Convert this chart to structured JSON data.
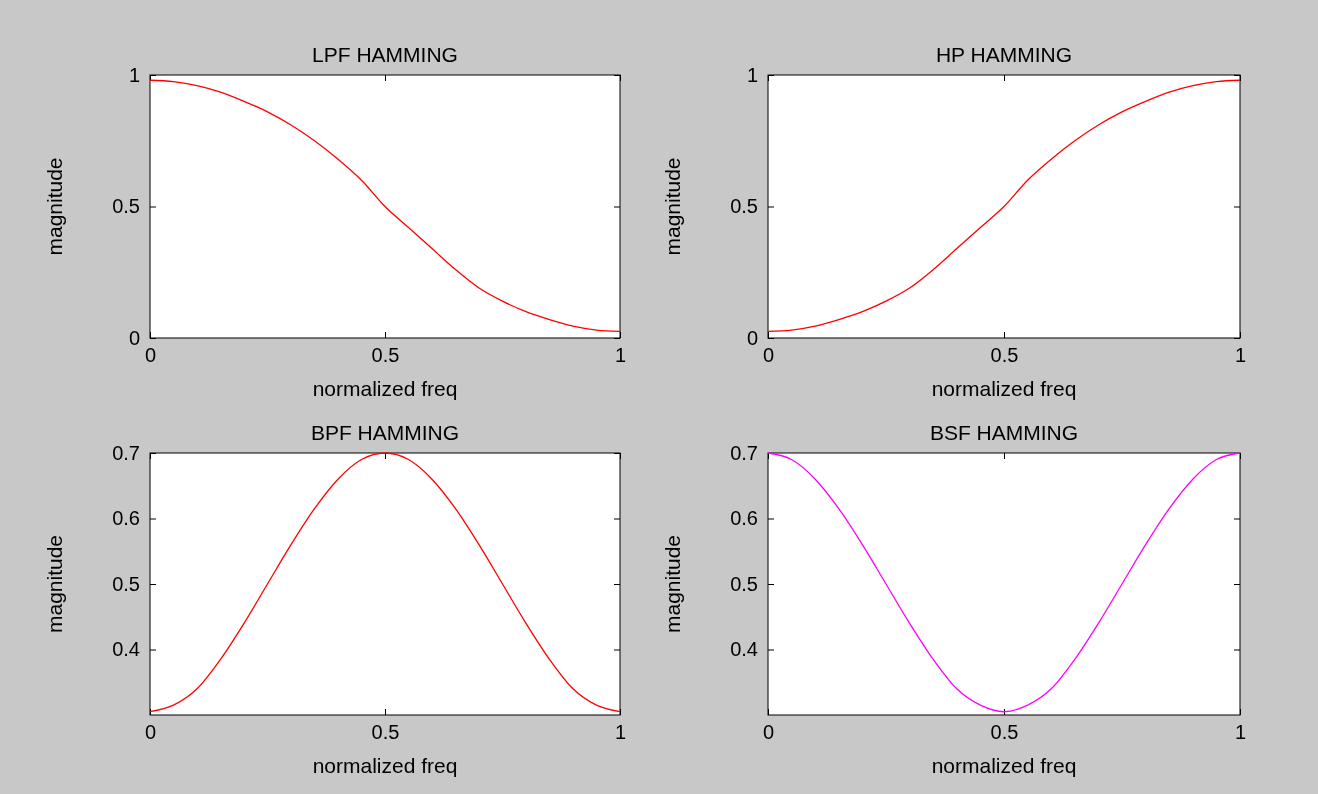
{
  "chart_data": [
    {
      "type": "line",
      "title": "LPF HAMMING",
      "xlabel": "normalized freq",
      "ylabel": "magnitude",
      "xlim": [
        0,
        1
      ],
      "ylim": [
        0,
        1
      ],
      "xticks": [
        0,
        0.5,
        1
      ],
      "yticks": [
        0,
        0.5,
        1
      ],
      "grid": false,
      "x": [
        0,
        0.05,
        0.1,
        0.15,
        0.2,
        0.25,
        0.3,
        0.35,
        0.4,
        0.45,
        0.5,
        0.55,
        0.6,
        0.65,
        0.7,
        0.75,
        0.8,
        0.85,
        0.9,
        0.95,
        1
      ],
      "series": [
        {
          "color": "#ff0000",
          "values": [
            0.98,
            0.975,
            0.96,
            0.935,
            0.9,
            0.86,
            0.81,
            0.75,
            0.68,
            0.6,
            0.5,
            0.42,
            0.34,
            0.26,
            0.19,
            0.14,
            0.1,
            0.07,
            0.045,
            0.03,
            0.025
          ]
        }
      ]
    },
    {
      "type": "line",
      "title": "HP HAMMING",
      "xlabel": "normalized freq",
      "ylabel": "magnitude",
      "xlim": [
        0,
        1
      ],
      "ylim": [
        0,
        1
      ],
      "xticks": [
        0,
        0.5,
        1
      ],
      "yticks": [
        0,
        0.5,
        1
      ],
      "grid": false,
      "x": [
        0,
        0.05,
        0.1,
        0.15,
        0.2,
        0.25,
        0.3,
        0.35,
        0.4,
        0.45,
        0.5,
        0.55,
        0.6,
        0.65,
        0.7,
        0.75,
        0.8,
        0.85,
        0.9,
        0.95,
        1
      ],
      "series": [
        {
          "color": "#ff0000",
          "values": [
            0.025,
            0.03,
            0.045,
            0.07,
            0.1,
            0.14,
            0.19,
            0.26,
            0.34,
            0.42,
            0.5,
            0.6,
            0.68,
            0.75,
            0.81,
            0.86,
            0.9,
            0.935,
            0.96,
            0.975,
            0.98
          ]
        }
      ]
    },
    {
      "type": "line",
      "title": "BPF HAMMING",
      "xlabel": "normalized freq",
      "ylabel": "magnitude",
      "xlim": [
        0,
        1
      ],
      "ylim": [
        0.3,
        0.7
      ],
      "xticks": [
        0,
        0.5,
        1
      ],
      "yticks": [
        0.4,
        0.5,
        0.6,
        0.7
      ],
      "grid": false,
      "x": [
        0,
        0.05,
        0.1,
        0.15,
        0.2,
        0.25,
        0.3,
        0.35,
        0.4,
        0.45,
        0.5,
        0.55,
        0.6,
        0.65,
        0.7,
        0.75,
        0.8,
        0.85,
        0.9,
        0.95,
        1
      ],
      "series": [
        {
          "color": "#ff0000",
          "values": [
            0.305,
            0.315,
            0.34,
            0.385,
            0.44,
            0.5,
            0.56,
            0.615,
            0.66,
            0.69,
            0.7,
            0.69,
            0.66,
            0.615,
            0.56,
            0.5,
            0.44,
            0.385,
            0.34,
            0.315,
            0.305
          ]
        }
      ]
    },
    {
      "type": "line",
      "title": "BSF HAMMING",
      "xlabel": "normalized freq",
      "ylabel": "magnitude",
      "xlim": [
        0,
        1
      ],
      "ylim": [
        0.3,
        0.7
      ],
      "xticks": [
        0,
        0.5,
        1
      ],
      "yticks": [
        0.4,
        0.5,
        0.6,
        0.7
      ],
      "grid": false,
      "x": [
        0,
        0.05,
        0.1,
        0.15,
        0.2,
        0.25,
        0.3,
        0.35,
        0.4,
        0.45,
        0.5,
        0.55,
        0.6,
        0.65,
        0.7,
        0.75,
        0.8,
        0.85,
        0.9,
        0.95,
        1
      ],
      "series": [
        {
          "color": "#ff00ff",
          "values": [
            0.7,
            0.69,
            0.66,
            0.615,
            0.56,
            0.5,
            0.44,
            0.385,
            0.34,
            0.315,
            0.305,
            0.315,
            0.34,
            0.385,
            0.44,
            0.5,
            0.56,
            0.615,
            0.66,
            0.69,
            0.7
          ]
        }
      ]
    }
  ]
}
